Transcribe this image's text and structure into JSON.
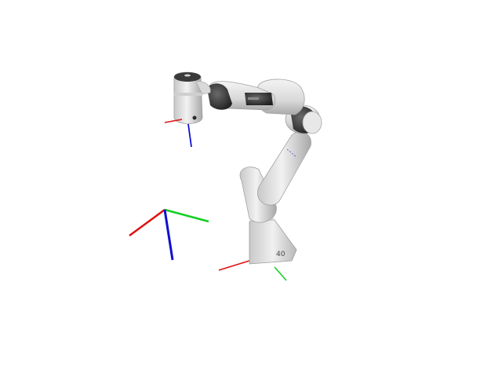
{
  "viewport": {
    "background": "#ffffff"
  },
  "robot": {
    "base_label": "40",
    "colors": {
      "body": "#e4e4e4",
      "body_shadow": "#bdbdbd",
      "body_dark": "#9a9a9a",
      "joint_band": "#2f2f2f"
    }
  },
  "axes": {
    "x_color": "#e01010",
    "y_color": "#10d020",
    "z_color": "#1010d0"
  }
}
